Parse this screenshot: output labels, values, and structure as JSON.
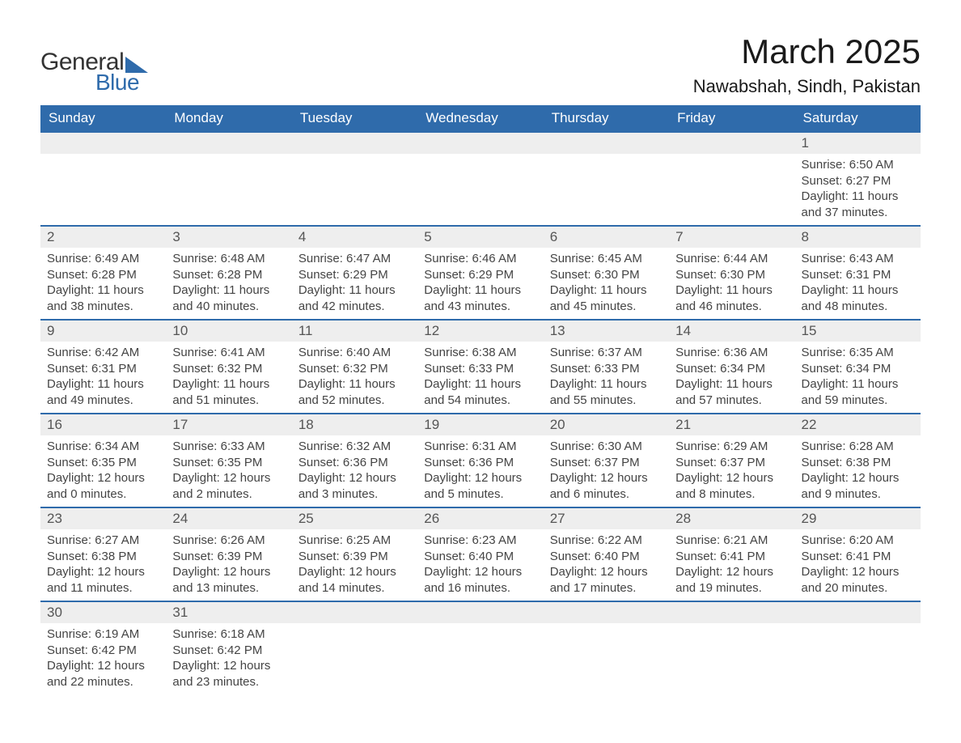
{
  "logo": {
    "line1": "General",
    "line2": "Blue"
  },
  "title": "March 2025",
  "location": "Nawabshah, Sindh, Pakistan",
  "colors": {
    "header_bg": "#2f6bab",
    "header_text": "#ffffff",
    "row_stripe": "#eeeeee",
    "divider": "#2f6bab",
    "text": "#444444"
  },
  "daynames": [
    "Sunday",
    "Monday",
    "Tuesday",
    "Wednesday",
    "Thursday",
    "Friday",
    "Saturday"
  ],
  "weeks": [
    [
      null,
      null,
      null,
      null,
      null,
      null,
      {
        "d": "1",
        "sr": "Sunrise: 6:50 AM",
        "ss": "Sunset: 6:27 PM",
        "dl1": "Daylight: 11 hours",
        "dl2": "and 37 minutes."
      }
    ],
    [
      {
        "d": "2",
        "sr": "Sunrise: 6:49 AM",
        "ss": "Sunset: 6:28 PM",
        "dl1": "Daylight: 11 hours",
        "dl2": "and 38 minutes."
      },
      {
        "d": "3",
        "sr": "Sunrise: 6:48 AM",
        "ss": "Sunset: 6:28 PM",
        "dl1": "Daylight: 11 hours",
        "dl2": "and 40 minutes."
      },
      {
        "d": "4",
        "sr": "Sunrise: 6:47 AM",
        "ss": "Sunset: 6:29 PM",
        "dl1": "Daylight: 11 hours",
        "dl2": "and 42 minutes."
      },
      {
        "d": "5",
        "sr": "Sunrise: 6:46 AM",
        "ss": "Sunset: 6:29 PM",
        "dl1": "Daylight: 11 hours",
        "dl2": "and 43 minutes."
      },
      {
        "d": "6",
        "sr": "Sunrise: 6:45 AM",
        "ss": "Sunset: 6:30 PM",
        "dl1": "Daylight: 11 hours",
        "dl2": "and 45 minutes."
      },
      {
        "d": "7",
        "sr": "Sunrise: 6:44 AM",
        "ss": "Sunset: 6:30 PM",
        "dl1": "Daylight: 11 hours",
        "dl2": "and 46 minutes."
      },
      {
        "d": "8",
        "sr": "Sunrise: 6:43 AM",
        "ss": "Sunset: 6:31 PM",
        "dl1": "Daylight: 11 hours",
        "dl2": "and 48 minutes."
      }
    ],
    [
      {
        "d": "9",
        "sr": "Sunrise: 6:42 AM",
        "ss": "Sunset: 6:31 PM",
        "dl1": "Daylight: 11 hours",
        "dl2": "and 49 minutes."
      },
      {
        "d": "10",
        "sr": "Sunrise: 6:41 AM",
        "ss": "Sunset: 6:32 PM",
        "dl1": "Daylight: 11 hours",
        "dl2": "and 51 minutes."
      },
      {
        "d": "11",
        "sr": "Sunrise: 6:40 AM",
        "ss": "Sunset: 6:32 PM",
        "dl1": "Daylight: 11 hours",
        "dl2": "and 52 minutes."
      },
      {
        "d": "12",
        "sr": "Sunrise: 6:38 AM",
        "ss": "Sunset: 6:33 PM",
        "dl1": "Daylight: 11 hours",
        "dl2": "and 54 minutes."
      },
      {
        "d": "13",
        "sr": "Sunrise: 6:37 AM",
        "ss": "Sunset: 6:33 PM",
        "dl1": "Daylight: 11 hours",
        "dl2": "and 55 minutes."
      },
      {
        "d": "14",
        "sr": "Sunrise: 6:36 AM",
        "ss": "Sunset: 6:34 PM",
        "dl1": "Daylight: 11 hours",
        "dl2": "and 57 minutes."
      },
      {
        "d": "15",
        "sr": "Sunrise: 6:35 AM",
        "ss": "Sunset: 6:34 PM",
        "dl1": "Daylight: 11 hours",
        "dl2": "and 59 minutes."
      }
    ],
    [
      {
        "d": "16",
        "sr": "Sunrise: 6:34 AM",
        "ss": "Sunset: 6:35 PM",
        "dl1": "Daylight: 12 hours",
        "dl2": "and 0 minutes."
      },
      {
        "d": "17",
        "sr": "Sunrise: 6:33 AM",
        "ss": "Sunset: 6:35 PM",
        "dl1": "Daylight: 12 hours",
        "dl2": "and 2 minutes."
      },
      {
        "d": "18",
        "sr": "Sunrise: 6:32 AM",
        "ss": "Sunset: 6:36 PM",
        "dl1": "Daylight: 12 hours",
        "dl2": "and 3 minutes."
      },
      {
        "d": "19",
        "sr": "Sunrise: 6:31 AM",
        "ss": "Sunset: 6:36 PM",
        "dl1": "Daylight: 12 hours",
        "dl2": "and 5 minutes."
      },
      {
        "d": "20",
        "sr": "Sunrise: 6:30 AM",
        "ss": "Sunset: 6:37 PM",
        "dl1": "Daylight: 12 hours",
        "dl2": "and 6 minutes."
      },
      {
        "d": "21",
        "sr": "Sunrise: 6:29 AM",
        "ss": "Sunset: 6:37 PM",
        "dl1": "Daylight: 12 hours",
        "dl2": "and 8 minutes."
      },
      {
        "d": "22",
        "sr": "Sunrise: 6:28 AM",
        "ss": "Sunset: 6:38 PM",
        "dl1": "Daylight: 12 hours",
        "dl2": "and 9 minutes."
      }
    ],
    [
      {
        "d": "23",
        "sr": "Sunrise: 6:27 AM",
        "ss": "Sunset: 6:38 PM",
        "dl1": "Daylight: 12 hours",
        "dl2": "and 11 minutes."
      },
      {
        "d": "24",
        "sr": "Sunrise: 6:26 AM",
        "ss": "Sunset: 6:39 PM",
        "dl1": "Daylight: 12 hours",
        "dl2": "and 13 minutes."
      },
      {
        "d": "25",
        "sr": "Sunrise: 6:25 AM",
        "ss": "Sunset: 6:39 PM",
        "dl1": "Daylight: 12 hours",
        "dl2": "and 14 minutes."
      },
      {
        "d": "26",
        "sr": "Sunrise: 6:23 AM",
        "ss": "Sunset: 6:40 PM",
        "dl1": "Daylight: 12 hours",
        "dl2": "and 16 minutes."
      },
      {
        "d": "27",
        "sr": "Sunrise: 6:22 AM",
        "ss": "Sunset: 6:40 PM",
        "dl1": "Daylight: 12 hours",
        "dl2": "and 17 minutes."
      },
      {
        "d": "28",
        "sr": "Sunrise: 6:21 AM",
        "ss": "Sunset: 6:41 PM",
        "dl1": "Daylight: 12 hours",
        "dl2": "and 19 minutes."
      },
      {
        "d": "29",
        "sr": "Sunrise: 6:20 AM",
        "ss": "Sunset: 6:41 PM",
        "dl1": "Daylight: 12 hours",
        "dl2": "and 20 minutes."
      }
    ],
    [
      {
        "d": "30",
        "sr": "Sunrise: 6:19 AM",
        "ss": "Sunset: 6:42 PM",
        "dl1": "Daylight: 12 hours",
        "dl2": "and 22 minutes."
      },
      {
        "d": "31",
        "sr": "Sunrise: 6:18 AM",
        "ss": "Sunset: 6:42 PM",
        "dl1": "Daylight: 12 hours",
        "dl2": "and 23 minutes."
      },
      null,
      null,
      null,
      null,
      null
    ]
  ]
}
